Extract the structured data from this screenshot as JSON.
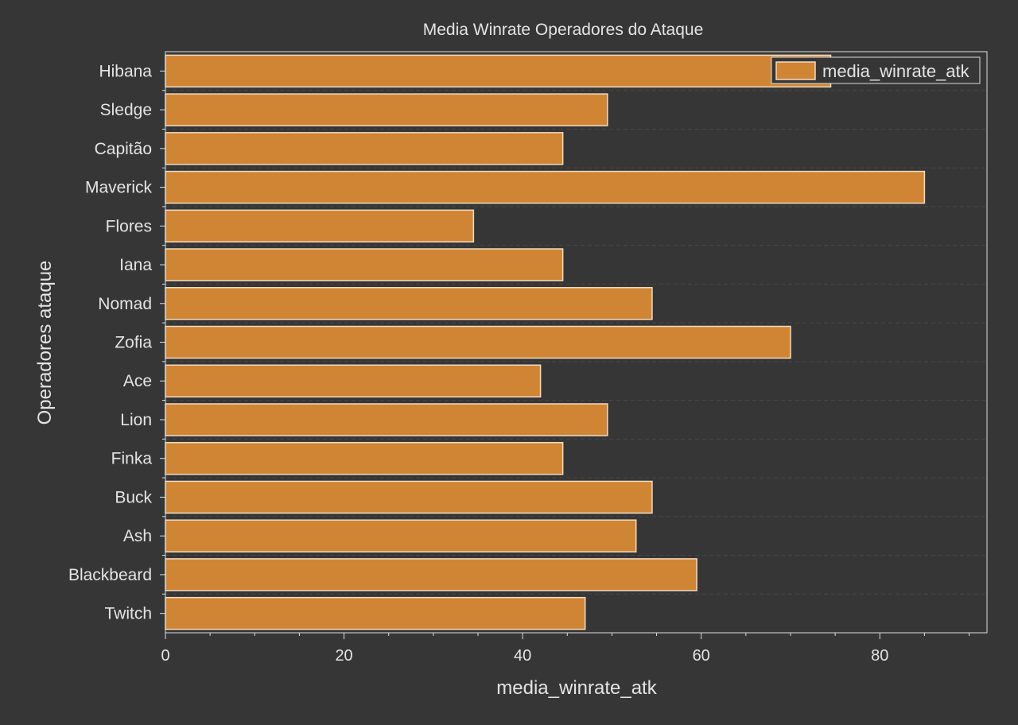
{
  "chart_data": {
    "type": "bar",
    "orientation": "horizontal",
    "title": "Media Winrate Operadores do Ataque",
    "xlabel": "media_winrate_atk",
    "ylabel": "Operadores ataque",
    "xlim": [
      0,
      92
    ],
    "x_ticks": [
      0,
      20,
      40,
      60,
      80
    ],
    "categories": [
      "Hibana",
      "Sledge",
      "Capitão",
      "Maverick",
      "Flores",
      "Iana",
      "Nomad",
      "Zofia",
      "Ace",
      "Lion",
      "Finka",
      "Buck",
      "Ash",
      "Blackbeard",
      "Twitch"
    ],
    "series": [
      {
        "name": "media_winrate_atk",
        "values": [
          74.5,
          49.5,
          44.5,
          85.0,
          34.5,
          44.5,
          54.5,
          70.0,
          42.0,
          49.5,
          44.5,
          54.5,
          52.7,
          59.5,
          47.0
        ]
      }
    ],
    "legend": "top-right",
    "grid": "dashed horizontal, faint",
    "colors": {
      "background": "#363636",
      "bar_fill": "#d08535",
      "bar_edge": "#f3dcc0",
      "axis": "#dddddd",
      "text": "#e4e4e4",
      "grid": "#474747"
    }
  }
}
